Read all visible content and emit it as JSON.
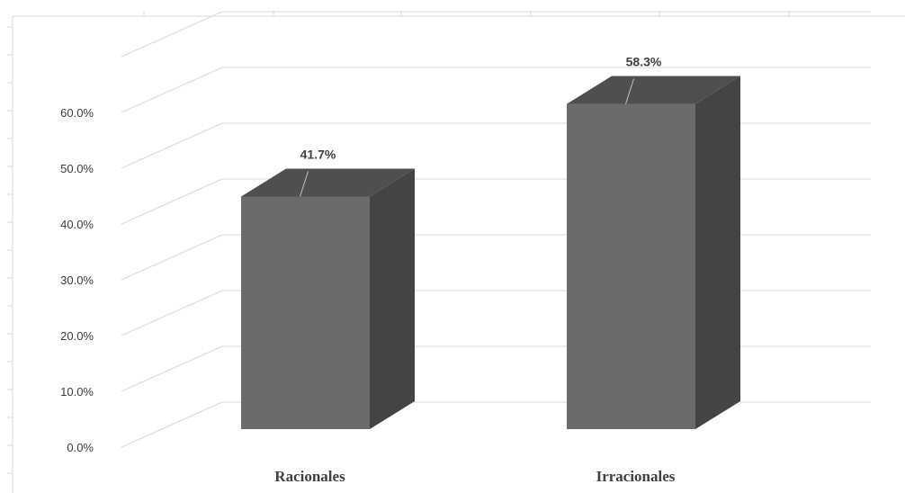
{
  "chart_data": {
    "type": "bar",
    "categories": [
      "Racionales",
      "Irracionales"
    ],
    "values": [
      41.7,
      58.3
    ],
    "data_labels": [
      "41.7%",
      "58.3%"
    ],
    "y_ticks": [
      "0.0%",
      "10.0%",
      "20.0%",
      "30.0%",
      "40.0%",
      "50.0%",
      "60.0%"
    ],
    "ylim": [
      0,
      70
    ],
    "grid": true,
    "legend": "none",
    "three_d": true,
    "colors": {
      "bar_front": "#6b6b6b",
      "bar_top": "#4f4f4f",
      "bar_side": "#444444",
      "grid": "#d9d9d9",
      "leader_line": "#bfbfbf"
    }
  }
}
